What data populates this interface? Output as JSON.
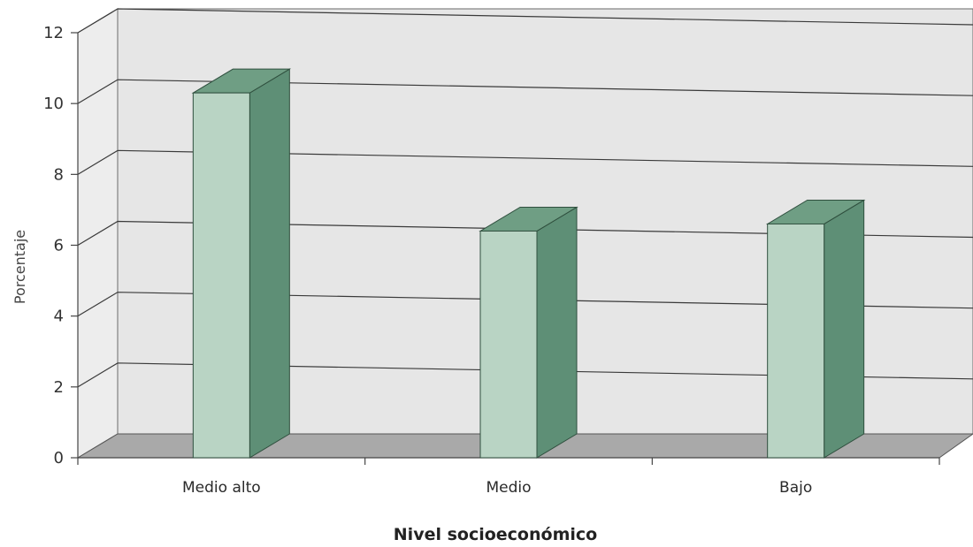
{
  "chart_data": {
    "type": "bar",
    "categories": [
      "Medio alto",
      "Medio",
      "Bajo"
    ],
    "values": [
      10.3,
      6.4,
      6.6
    ],
    "title": "",
    "xlabel": "Nivel socioeconómico",
    "ylabel": "Porcentaje",
    "ylim": [
      0,
      12
    ],
    "yticks": [
      0,
      2,
      4,
      6,
      8,
      10,
      12
    ],
    "grid": true,
    "legend": "none",
    "style": "3d",
    "colors": {
      "bar_front": "#b9d4c4",
      "bar_side": "#5e8f76",
      "bar_top": "#6f9e84",
      "floor": "#a9a9a9",
      "wall": "#e6e6e6",
      "left_wall": "#ededed",
      "grid": "#3a3a3a"
    }
  }
}
